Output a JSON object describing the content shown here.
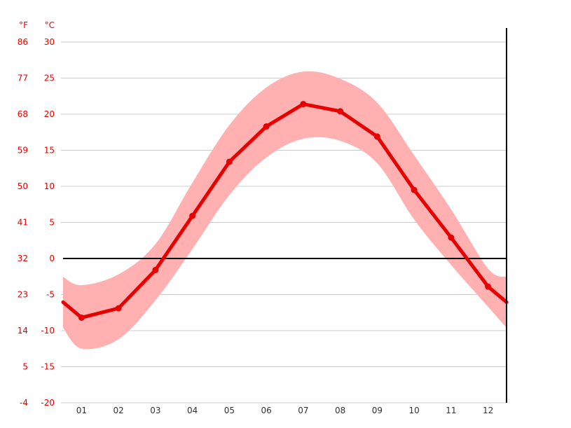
{
  "chart_data": {
    "type": "line",
    "description": "Climate graph: monthly mean temperature with min/max range band",
    "categories": [
      "01",
      "02",
      "03",
      "04",
      "05",
      "06",
      "07",
      "08",
      "09",
      "10",
      "11",
      "12"
    ],
    "series": [
      {
        "name": "mean_temperature_c",
        "values": [
          -8.2,
          -6.9,
          -1.6,
          5.9,
          13.4,
          18.3,
          21.4,
          20.4,
          16.9,
          9.5,
          2.9,
          -3.9
        ]
      },
      {
        "name": "max_band_temperature_c",
        "values": [
          -3.7,
          -2.2,
          2.0,
          10.5,
          18.5,
          23.7,
          25.9,
          24.9,
          21.6,
          14.3,
          6.8,
          -1.4
        ]
      },
      {
        "name": "min_band_temperature_c",
        "values": [
          -12.5,
          -11.2,
          -5.8,
          1.3,
          8.8,
          14.0,
          16.6,
          16.3,
          13.2,
          5.4,
          -0.9,
          -6.7
        ]
      }
    ],
    "ylim": [
      -20,
      30
    ],
    "y_axis_f": {
      "label": "°F",
      "ticks": [
        86,
        77,
        68,
        59,
        50,
        41,
        32,
        23,
        14,
        5,
        -4
      ]
    },
    "y_axis_c": {
      "label": "°C",
      "ticks": [
        30,
        25,
        20,
        15,
        10,
        5,
        0,
        -5,
        -10,
        -15,
        -20
      ]
    },
    "zero_reference_line_c": 0,
    "grid": "horizontal",
    "legend": "none",
    "colors": {
      "mean_line": "#e60000",
      "data_point": "#e60000",
      "band": "#ffb1b1",
      "grid": "#cccccc",
      "zero_line": "#000000",
      "right_border": "#000000",
      "tick_label": "#e60000",
      "month_label": "#333333",
      "background": "#ffffff"
    }
  }
}
